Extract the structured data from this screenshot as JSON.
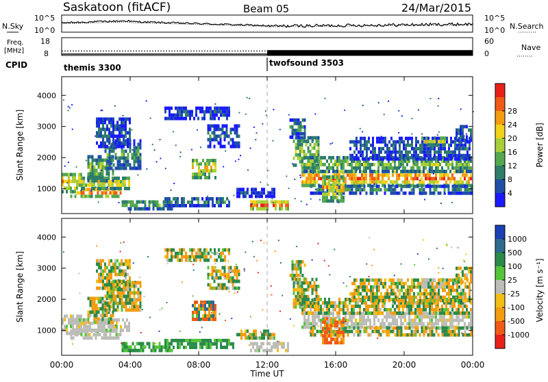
{
  "header": {
    "station": "Saskatoon (fitACF)",
    "beam": "Beam 05",
    "date": "24/Mar/2015"
  },
  "chart_data": [
    {
      "type": "line",
      "name": "nsky-nsearch",
      "left_label": "N.Sky",
      "right_label": "N.Search",
      "left_ticks": [
        "10^5",
        "10^0"
      ],
      "right_ticks": [
        "10^5",
        "10^0"
      ],
      "xlim": [
        0,
        24
      ]
    },
    {
      "type": "line",
      "name": "freq-nave",
      "left_label_line1": "Freq.",
      "left_label_line2": "[MHz]",
      "right_label": "Nave",
      "left_ticks": [
        "18",
        "8"
      ],
      "right_ticks": [
        "60",
        "0"
      ],
      "left_ylim": [
        8,
        18
      ],
      "right_ylim": [
        0,
        60
      ],
      "freq_level": 10.5,
      "nave_level_before": 0,
      "nave_level_after": 18,
      "xlim": [
        0,
        24
      ]
    },
    {
      "type": "table",
      "name": "cpid",
      "label": "CPID",
      "modes": [
        {
          "label": "themis 3300",
          "start": 0,
          "end": 12
        },
        {
          "label": "twofsound 3503",
          "start": 12,
          "end": 24
        }
      ]
    },
    {
      "type": "heatmap",
      "name": "power",
      "ylabel": "Slant Range [km]",
      "yticks": [
        "1000",
        "2000",
        "3000",
        "4000"
      ],
      "ylim": [
        200,
        4600
      ],
      "xlim": [
        0,
        24
      ],
      "colorbar_label": "Power [dB]",
      "colorbar_ticks": [
        "4",
        "8",
        "12",
        "16",
        "20",
        "24",
        "28"
      ],
      "zlim": [
        0,
        30
      ],
      "colors": [
        "#1a1aff",
        "#1f4fa8",
        "#2e7d6b",
        "#55a84f",
        "#a8cf3a",
        "#f2d21b",
        "#f39c12",
        "#ef5a16",
        "#e8201a"
      ]
    },
    {
      "type": "heatmap",
      "name": "velocity",
      "ylabel": "Slant Range [km]",
      "yticks": [
        "1000",
        "2000",
        "3000",
        "4000"
      ],
      "ylim": [
        200,
        4600
      ],
      "xlim": [
        0,
        24
      ],
      "colorbar_label": "Velocity [m s⁻¹]",
      "colorbar_ticks": [
        "1000",
        "500",
        "100",
        "25",
        "-25",
        "-100",
        "-500",
        "-1000"
      ],
      "zlim": [
        -1000,
        1000
      ],
      "colors": [
        "#1a3fb5",
        "#2e6b8f",
        "#2a8a4a",
        "#55c43a",
        "#bdbdb8",
        "#f2c014",
        "#f39c12",
        "#ef5a16",
        "#e8201a"
      ]
    }
  ],
  "xaxis": {
    "ticks": [
      "00:00",
      "04:00",
      "08:00",
      "12:00",
      "16:00",
      "20:00",
      "00:00"
    ],
    "label": "Time UT"
  }
}
